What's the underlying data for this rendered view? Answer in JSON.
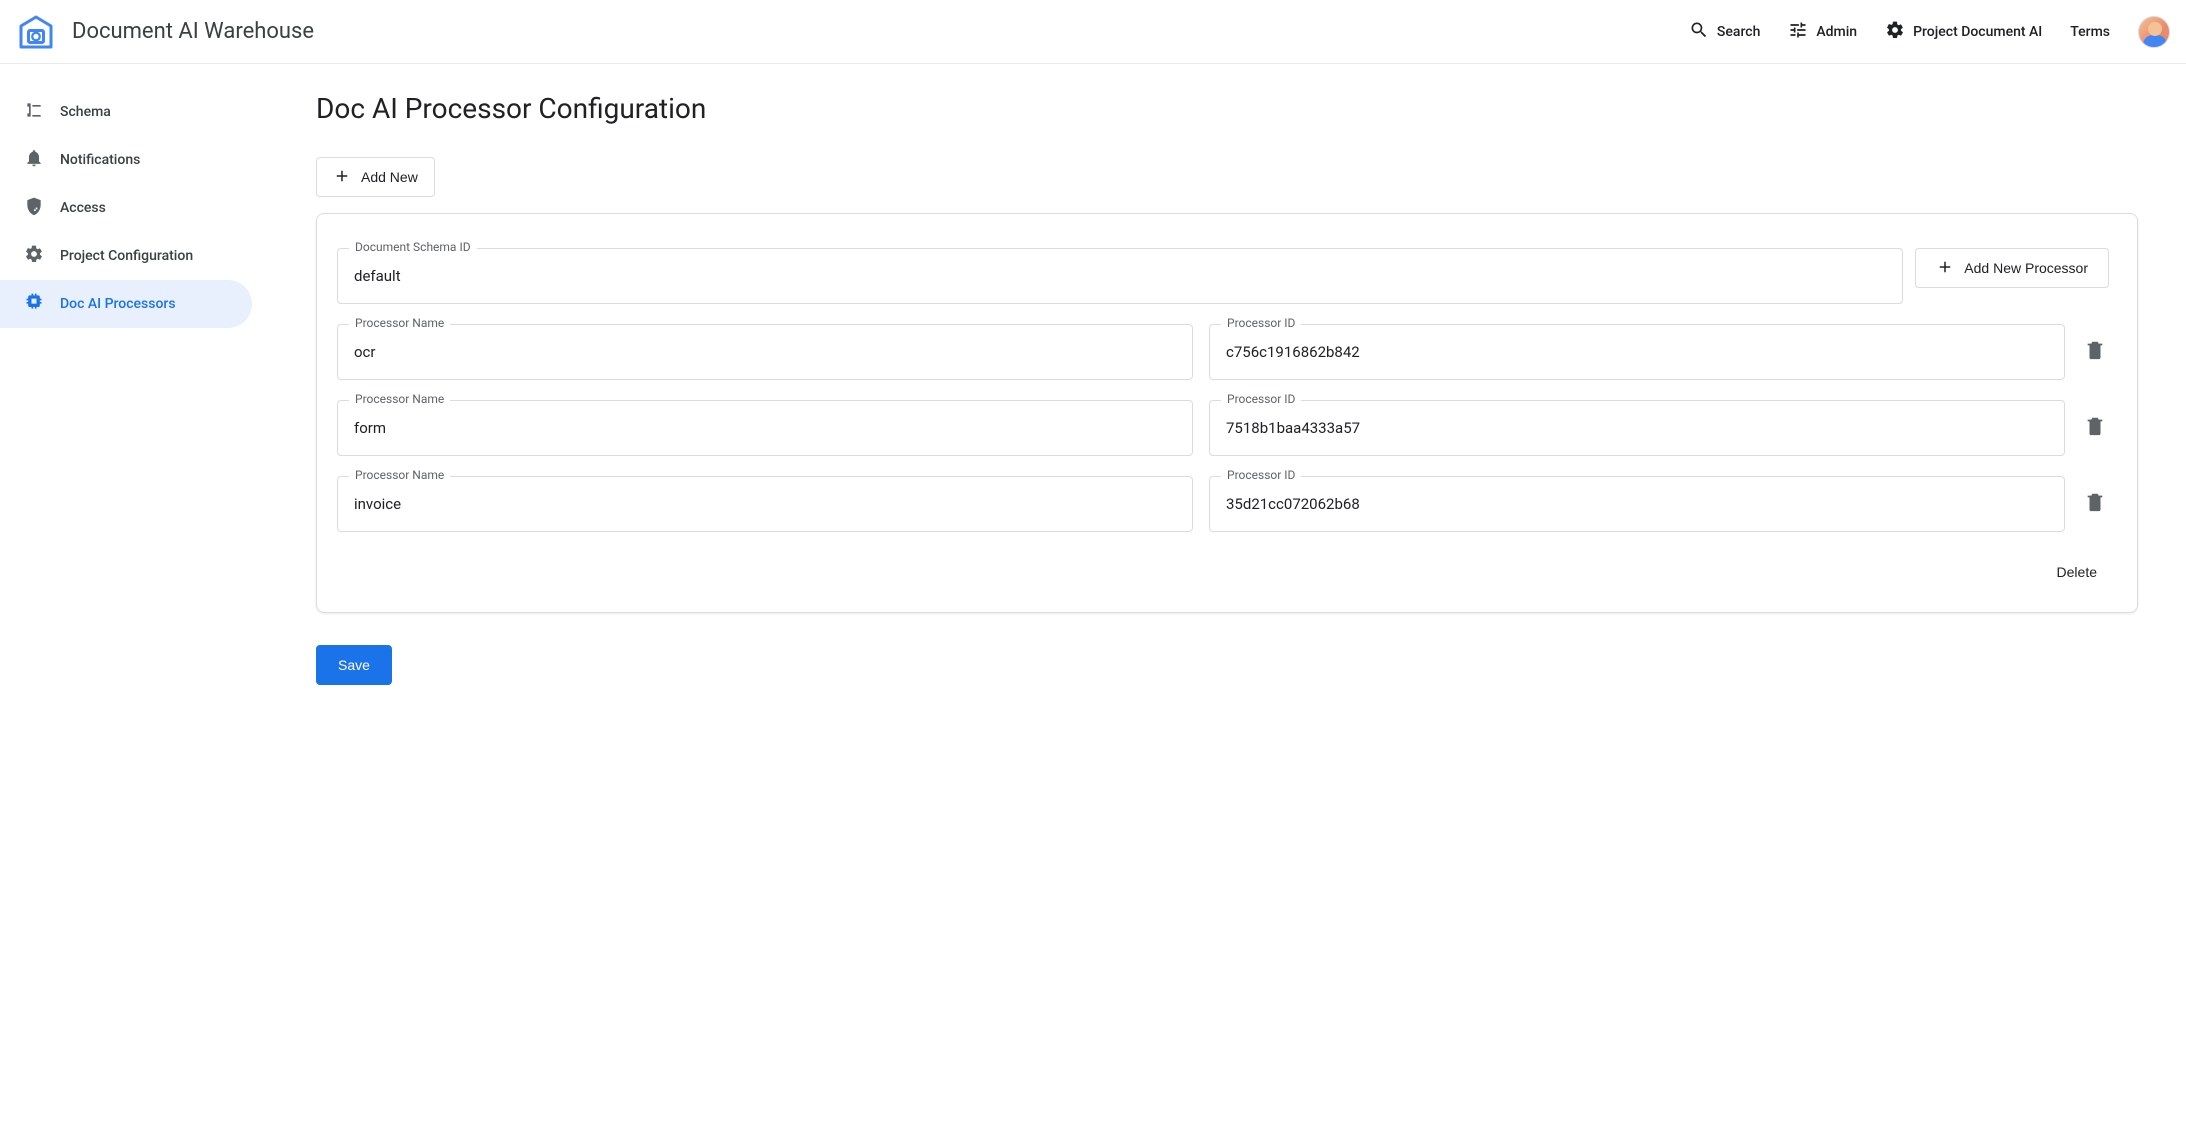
{
  "header": {
    "app_title": "Document AI Warehouse",
    "search_label": "Search",
    "admin_label": "Admin",
    "project_label": "Project Document AI",
    "terms_label": "Terms"
  },
  "sidebar": {
    "items": [
      {
        "label": "Schema"
      },
      {
        "label": "Notifications"
      },
      {
        "label": "Access"
      },
      {
        "label": "Project Configuration"
      },
      {
        "label": "Doc AI Processors"
      }
    ]
  },
  "main": {
    "page_title": "Doc AI Processor Configuration",
    "add_new_label": "Add New",
    "schema_id_label": "Document Schema ID",
    "schema_id_value": "default",
    "add_processor_label": "Add New Processor",
    "processor_name_label": "Processor Name",
    "processor_id_label": "Processor ID",
    "processors": [
      {
        "name": "ocr",
        "id": "c756c1916862b842"
      },
      {
        "name": "form",
        "id": "7518b1baa4333a57"
      },
      {
        "name": "invoice",
        "id": "35d21cc072062b68"
      }
    ],
    "delete_label": "Delete",
    "save_label": "Save"
  },
  "colors": {
    "primary": "#1a73e8",
    "active_bg": "#e8f0fe",
    "border": "#dadce0",
    "text": "#202124",
    "muted": "#5f6368"
  }
}
